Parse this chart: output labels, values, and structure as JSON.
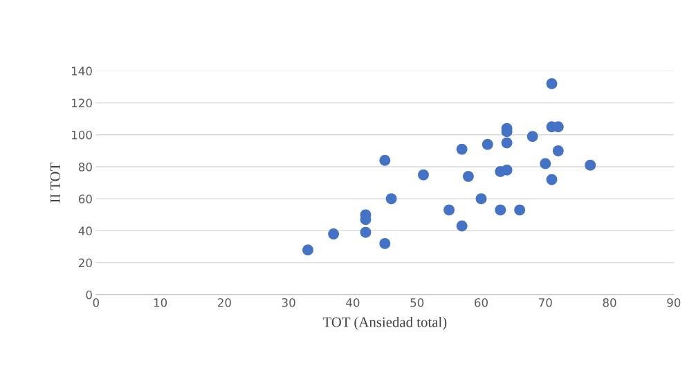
{
  "chart_data": {
    "type": "scatter",
    "xlabel": "TOT (Ansiedad total)",
    "ylabel": "II TOT",
    "x": [
      33,
      37,
      42,
      42,
      42,
      45,
      45,
      46,
      51,
      55,
      57,
      57,
      58,
      60,
      61,
      63,
      63,
      64,
      64,
      64,
      64,
      66,
      68,
      70,
      71,
      71,
      71,
      72,
      72,
      77
    ],
    "series": [
      {
        "color": "#4472c4",
        "values": [
          28,
          38,
          50,
          47,
          39,
          84,
          32,
          60,
          75,
          53,
          91,
          43,
          74,
          60,
          94,
          77,
          53,
          104,
          102,
          95,
          78,
          53,
          99,
          82,
          132,
          105,
          72,
          105,
          90,
          81
        ]
      }
    ],
    "xlim": [
      0,
      90
    ],
    "xticks": [
      0,
      10,
      20,
      30,
      40,
      50,
      60,
      70,
      80,
      90
    ],
    "ylim": [
      0,
      140
    ],
    "yticks": [
      0,
      20,
      40,
      60,
      80,
      100,
      120,
      140
    ],
    "grid": "y",
    "marker": "circle"
  }
}
